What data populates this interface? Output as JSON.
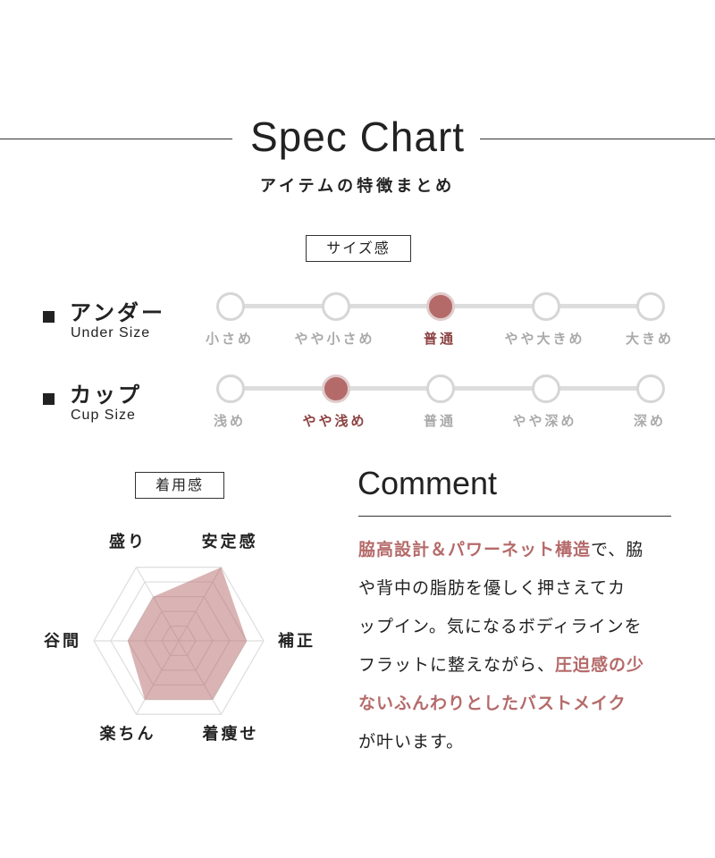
{
  "header": {
    "title": "Spec Chart",
    "subtitle": "アイテムの特徴まとめ"
  },
  "size_section": {
    "label": "サイズ感",
    "rows": [
      {
        "name_jp": "アンダー",
        "name_en": "Under Size",
        "options": [
          "小さめ",
          "やや小さめ",
          "普通",
          "やや大きめ",
          "大きめ"
        ],
        "selected": 2
      },
      {
        "name_jp": "カップ",
        "name_en": "Cup Size",
        "options": [
          "浅め",
          "やや浅め",
          "普通",
          "やや深め",
          "深め"
        ],
        "selected": 1
      }
    ]
  },
  "fit_section": {
    "label": "着用感"
  },
  "chart_data": {
    "type": "radar",
    "categories": [
      "盛り",
      "安定感",
      "補正",
      "着痩せ",
      "楽ちん",
      "谷間"
    ],
    "values": [
      3,
      5,
      4,
      4,
      4,
      3
    ],
    "range": [
      0,
      5
    ],
    "fill_color": "#b56a6a"
  },
  "comment": {
    "title": "Comment",
    "lines": [
      [
        {
          "text": "脇高設計＆パワーネット構造",
          "hl": true
        },
        {
          "text": "で、脇",
          "hl": false
        }
      ],
      [
        {
          "text": "や背中の脂肪を優しく押さえてカ",
          "hl": false
        }
      ],
      [
        {
          "text": "ップイン。気になるボディラインを",
          "hl": false
        }
      ],
      [
        {
          "text": "フラットに整えながら、",
          "hl": false
        },
        {
          "text": "圧迫感の少",
          "hl": true
        }
      ],
      [
        {
          "text": "ないふんわりとしたバストメイク",
          "hl": true
        }
      ],
      [
        {
          "text": "が叶います。",
          "hl": false
        }
      ]
    ]
  },
  "colors": {
    "accent": "#b56a6a",
    "selected_text": "#8c4242",
    "inactive": "#aaaaaa"
  }
}
